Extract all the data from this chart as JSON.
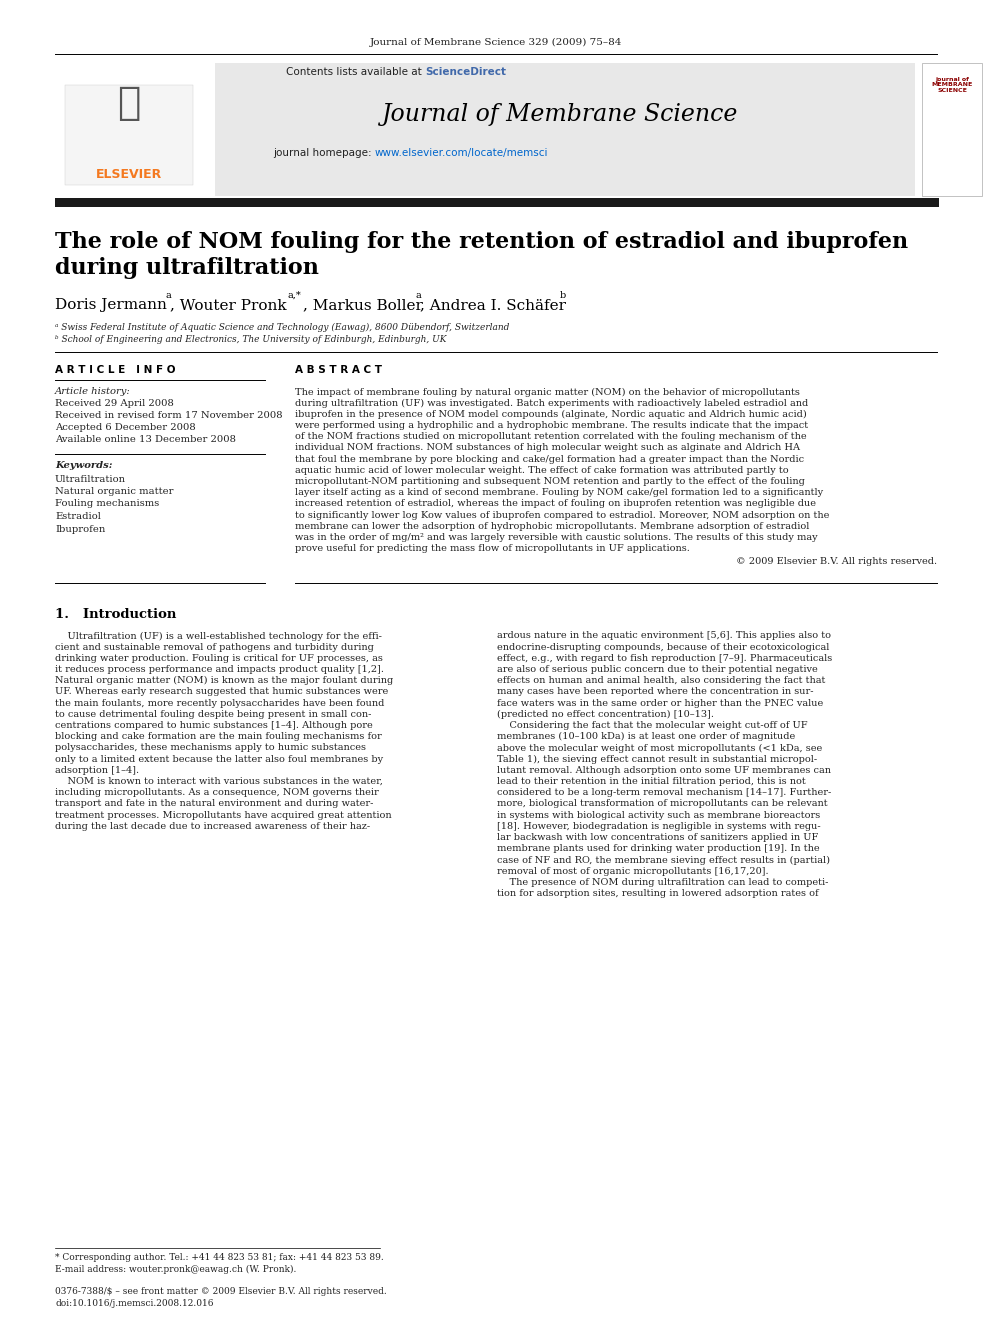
{
  "journal_ref": "Journal of Membrane Science 329 (2009) 75–84",
  "contents_text": "Contents lists available at ",
  "science_direct": "ScienceDirect",
  "journal_title": "Journal of Membrane Science",
  "journal_homepage_prefix": "journal homepage: ",
  "journal_homepage_url": "www.elsevier.com/locate/memsci",
  "paper_title_line1": "The role of NOM fouling for the retention of estradiol and ibuprofen",
  "paper_title_line2": "during ultrafiltration",
  "affil_a": "ᵃ Swiss Federal Institute of Aquatic Science and Technology (Eawag), 8600 Dübendorf, Switzerland",
  "affil_b": "ᵇ School of Engineering and Electronics, The University of Edinburgh, Edinburgh, UK",
  "article_info_header": "A R T I C L E   I N F O",
  "abstract_header": "A B S T R A C T",
  "article_history_label": "Article history:",
  "received": "Received 29 April 2008",
  "received_revised": "Received in revised form 17 November 2008",
  "accepted": "Accepted 6 December 2008",
  "available": "Available online 13 December 2008",
  "keywords_label": "Keywords:",
  "keywords": [
    "Ultrafiltration",
    "Natural organic matter",
    "Fouling mechanisms",
    "Estradiol",
    "Ibuprofen"
  ],
  "copyright": "© 2009 Elsevier B.V. All rights reserved.",
  "section1_title": "1.   Introduction",
  "footnote_star": "* Corresponding author. Tel.: +41 44 823 53 81; fax: +41 44 823 53 89.",
  "footnote_email": "E-mail address: wouter.pronk@eawag.ch (W. Pronk).",
  "footer_issn": "0376-7388/$ – see front matter © 2009 Elsevier B.V. All rights reserved.",
  "footer_doi": "doi:10.1016/j.memsci.2008.12.016",
  "abstract_lines": [
    "The impact of membrane fouling by natural organic matter (NOM) on the behavior of micropollutants",
    "during ultrafiltration (UF) was investigated. Batch experiments with radioactively labeled estradiol and",
    "ibuprofen in the presence of NOM model compounds (alginate, Nordic aquatic and Aldrich humic acid)",
    "were performed using a hydrophilic and a hydrophobic membrane. The results indicate that the impact",
    "of the NOM fractions studied on micropollutant retention correlated with the fouling mechanism of the",
    "individual NOM fractions. NOM substances of high molecular weight such as alginate and Aldrich HA",
    "that foul the membrane by pore blocking and cake/gel formation had a greater impact than the Nordic",
    "aquatic humic acid of lower molecular weight. The effect of cake formation was attributed partly to",
    "micropollutant-NOM partitioning and subsequent NOM retention and partly to the effect of the fouling",
    "layer itself acting as a kind of second membrane. Fouling by NOM cake/gel formation led to a significantly",
    "increased retention of estradiol, whereas the impact of fouling on ibuprofen retention was negligible due",
    "to significantly lower log Kow values of ibuprofen compared to estradiol. Moreover, NOM adsorption on the",
    "membrane can lower the adsorption of hydrophobic micropollutants. Membrane adsorption of estradiol",
    "was in the order of mg/m² and was largely reversible with caustic solutions. The results of this study may",
    "prove useful for predicting the mass flow of micropollutants in UF applications."
  ],
  "intro_col1_lines": [
    "    Ultrafiltration (UF) is a well-established technology for the effi-",
    "cient and sustainable removal of pathogens and turbidity during",
    "drinking water production. Fouling is critical for UF processes, as",
    "it reduces process performance and impacts product quality [1,2].",
    "Natural organic matter (NOM) is known as the major foulant during",
    "UF. Whereas early research suggested that humic substances were",
    "the main foulants, more recently polysaccharides have been found",
    "to cause detrimental fouling despite being present in small con-",
    "centrations compared to humic substances [1–4]. Although pore",
    "blocking and cake formation are the main fouling mechanisms for",
    "polysaccharides, these mechanisms apply to humic substances",
    "only to a limited extent because the latter also foul membranes by",
    "adsorption [1–4].",
    "    NOM is known to interact with various substances in the water,",
    "including micropollutants. As a consequence, NOM governs their",
    "transport and fate in the natural environment and during water-",
    "treatment processes. Micropollutants have acquired great attention",
    "during the last decade due to increased awareness of their haz-"
  ],
  "intro_col2_lines": [
    "ardous nature in the aquatic environment [5,6]. This applies also to",
    "endocrine-disrupting compounds, because of their ecotoxicological",
    "effect, e.g., with regard to fish reproduction [7–9]. Pharmaceuticals",
    "are also of serious public concern due to their potential negative",
    "effects on human and animal health, also considering the fact that",
    "many cases have been reported where the concentration in sur-",
    "face waters was in the same order or higher than the PNEC value",
    "(predicted no effect concentration) [10–13].",
    "    Considering the fact that the molecular weight cut-off of UF",
    "membranes (10–100 kDa) is at least one order of magnitude",
    "above the molecular weight of most micropollutants (<1 kDa, see",
    "Table 1), the sieving effect cannot result in substantial micropol-",
    "lutant removal. Although adsorption onto some UF membranes can",
    "lead to their retention in the initial filtration period, this is not",
    "considered to be a long-term removal mechanism [14–17]. Further-",
    "more, biological transformation of micropollutants can be relevant",
    "in systems with biological activity such as membrane bioreactors",
    "[18]. However, biodegradation is negligible in systems with regu-",
    "lar backwash with low concentrations of sanitizers applied in UF",
    "membrane plants used for drinking water production [19]. In the",
    "case of NF and RO, the membrane sieving effect results in (partial)",
    "removal of most of organic micropollutants [16,17,20].",
    "    The presence of NOM during ultrafiltration can lead to competi-",
    "tion for adsorption sites, resulting in lowered adsorption rates of"
  ],
  "header_bg": "#e8e8e8",
  "elsevier_orange": "#f47920",
  "science_direct_color": "#4169aa",
  "url_color": "#0066cc",
  "black": "#000000",
  "dark_gray": "#222222",
  "thick_bar_color": "#1a1a1a",
  "page_bg": "#ffffff"
}
